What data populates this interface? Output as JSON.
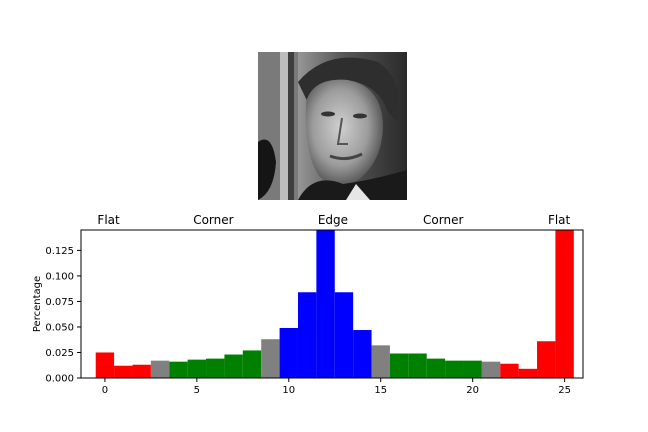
{
  "colors": {
    "flat": "#ff0000",
    "corner": "#008000",
    "edge": "#0000ff",
    "transition": "#808080"
  },
  "image": {
    "description_icon": "face-photo-icon"
  },
  "chart_data": {
    "type": "bar",
    "ylabel": "Percentage",
    "xlim": [
      -1.3,
      26.0
    ],
    "ylim": [
      0.0,
      0.145
    ],
    "xticks": [
      0,
      5,
      10,
      15,
      20,
      25
    ],
    "yticks": [
      0.0,
      0.025,
      0.05,
      0.075,
      0.1,
      0.125
    ],
    "ytick_labels": [
      "0.000",
      "0.025",
      "0.050",
      "0.075",
      "0.100",
      "0.125"
    ],
    "region_labels": [
      {
        "text": "Flat",
        "x": 0.2
      },
      {
        "text": "Corner",
        "x": 5.9
      },
      {
        "text": "Edge",
        "x": 12.4
      },
      {
        "text": "Corner",
        "x": 18.4
      },
      {
        "text": "Flat",
        "x": 24.7
      }
    ],
    "bars": [
      {
        "x": 0,
        "value": 0.025,
        "color": "#ff0000"
      },
      {
        "x": 1,
        "value": 0.012,
        "color": "#ff0000"
      },
      {
        "x": 2,
        "value": 0.013,
        "color": "#ff0000"
      },
      {
        "x": 3,
        "value": 0.017,
        "color": "#808080"
      },
      {
        "x": 4,
        "value": 0.016,
        "color": "#008000"
      },
      {
        "x": 5,
        "value": 0.018,
        "color": "#008000"
      },
      {
        "x": 6,
        "value": 0.019,
        "color": "#008000"
      },
      {
        "x": 7,
        "value": 0.023,
        "color": "#008000"
      },
      {
        "x": 8,
        "value": 0.027,
        "color": "#008000"
      },
      {
        "x": 9,
        "value": 0.038,
        "color": "#808080"
      },
      {
        "x": 10,
        "value": 0.049,
        "color": "#0000ff"
      },
      {
        "x": 11,
        "value": 0.084,
        "color": "#0000ff"
      },
      {
        "x": 12,
        "value": 0.145,
        "color": "#0000ff"
      },
      {
        "x": 13,
        "value": 0.084,
        "color": "#0000ff"
      },
      {
        "x": 14,
        "value": 0.047,
        "color": "#0000ff"
      },
      {
        "x": 15,
        "value": 0.032,
        "color": "#808080"
      },
      {
        "x": 16,
        "value": 0.024,
        "color": "#008000"
      },
      {
        "x": 17,
        "value": 0.024,
        "color": "#008000"
      },
      {
        "x": 18,
        "value": 0.019,
        "color": "#008000"
      },
      {
        "x": 19,
        "value": 0.017,
        "color": "#008000"
      },
      {
        "x": 20,
        "value": 0.017,
        "color": "#008000"
      },
      {
        "x": 21,
        "value": 0.016,
        "color": "#808080"
      },
      {
        "x": 22,
        "value": 0.014,
        "color": "#ff0000"
      },
      {
        "x": 23,
        "value": 0.009,
        "color": "#ff0000"
      },
      {
        "x": 24,
        "value": 0.036,
        "color": "#ff0000"
      },
      {
        "x": 25,
        "value": 0.145,
        "color": "#ff0000"
      }
    ]
  }
}
